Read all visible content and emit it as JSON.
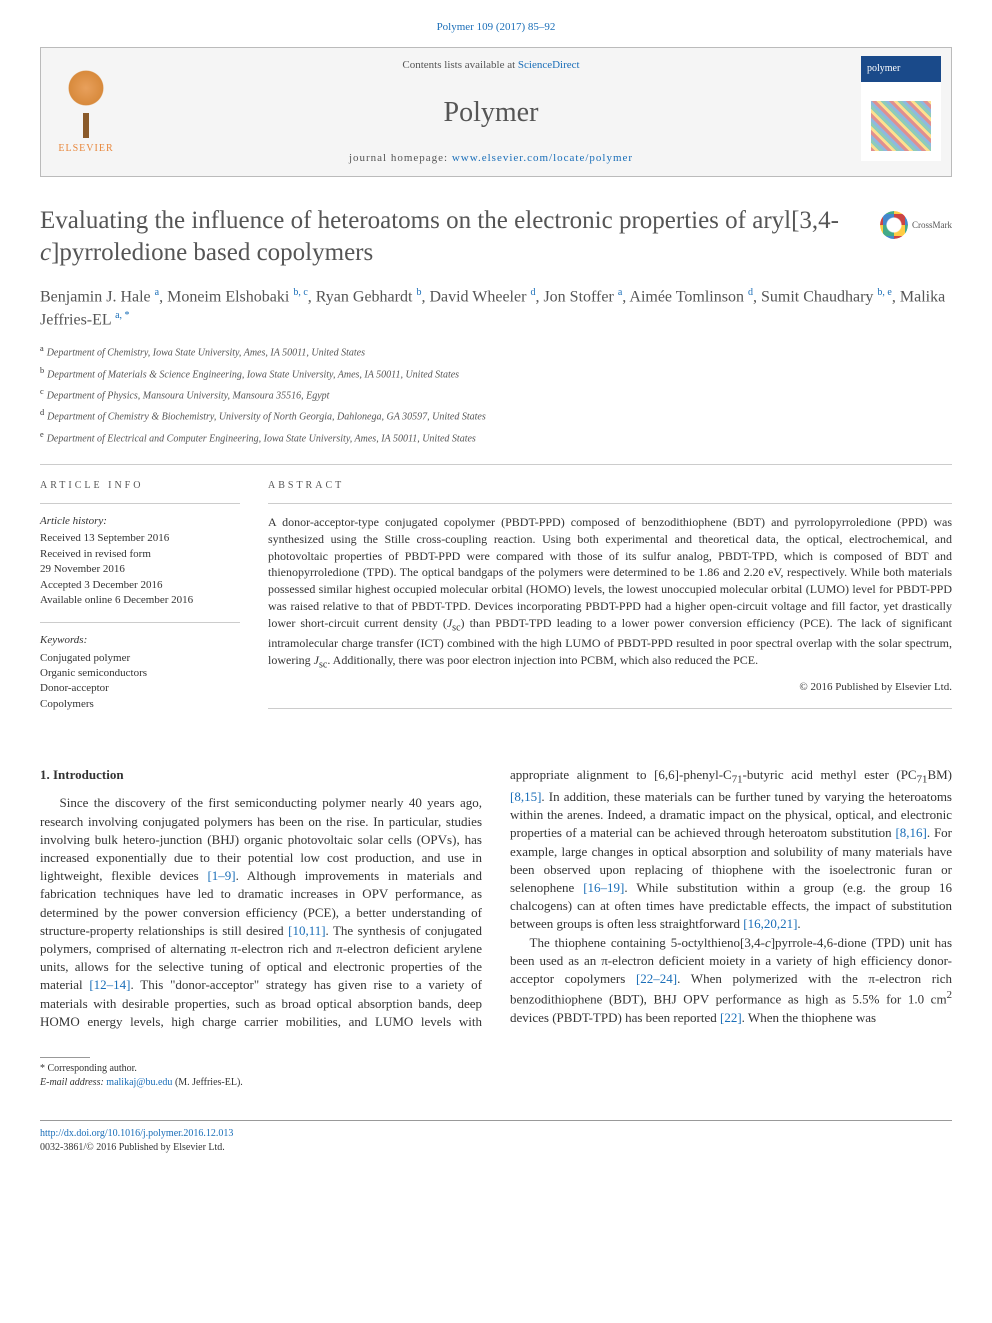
{
  "citation": "Polymer 109 (2017) 85–92",
  "header": {
    "contents_prefix": "Contents lists available at ",
    "contents_link": "ScienceDirect",
    "journal": "Polymer",
    "homepage_prefix": "journal homepage: ",
    "homepage_link": "www.elsevier.com/locate/polymer",
    "publisher": "ELSEVIER"
  },
  "title": "Evaluating the influence of heteroatoms on the electronic properties of aryl[3,4-c]pyrroledione based copolymers",
  "crossmark": "CrossMark",
  "authors_html": "Benjamin J. Hale <sup>a</sup>, Moneim Elshobaki <sup>b, c</sup>, Ryan Gebhardt <sup>b</sup>, David Wheeler <sup>d</sup>, Jon Stoffer <sup>a</sup>, Aimée Tomlinson <sup>d</sup>, Sumit Chaudhary <sup>b, e</sup>, Malika Jeffries-EL <sup>a, *</sup>",
  "affiliations": [
    {
      "sup": "a",
      "text": "Department of Chemistry, Iowa State University, Ames, IA 50011, United States"
    },
    {
      "sup": "b",
      "text": "Department of Materials & Science Engineering, Iowa State University, Ames, IA 50011, United States"
    },
    {
      "sup": "c",
      "text": "Department of Physics, Mansoura University, Mansoura 35516, Egypt"
    },
    {
      "sup": "d",
      "text": "Department of Chemistry & Biochemistry, University of North Georgia, Dahlonega, GA 30597, United States"
    },
    {
      "sup": "e",
      "text": "Department of Electrical and Computer Engineering, Iowa State University, Ames, IA 50011, United States"
    }
  ],
  "info": {
    "head": "ARTICLE INFO",
    "history_label": "Article history:",
    "history": [
      "Received 13 September 2016",
      "Received in revised form",
      "29 November 2016",
      "Accepted 3 December 2016",
      "Available online 6 December 2016"
    ],
    "keywords_label": "Keywords:",
    "keywords": [
      "Conjugated polymer",
      "Organic semiconductors",
      "Donor-acceptor",
      "Copolymers"
    ]
  },
  "abstract": {
    "head": "ABSTRACT",
    "text": "A donor-acceptor-type conjugated copolymer (PBDT-PPD) composed of benzodithiophene (BDT) and pyrrolopyrroledione (PPD) was synthesized using the Stille cross-coupling reaction. Using both experimental and theoretical data, the optical, electrochemical, and photovoltaic properties of PBDT-PPD were compared with those of its sulfur analog, PBDT-TPD, which is composed of BDT and thienopyrroledione (TPD). The optical bandgaps of the polymers were determined to be 1.86 and 2.20 eV, respectively. While both materials possessed similar highest occupied molecular orbital (HOMO) levels, the lowest unoccupied molecular orbital (LUMO) level for PBDT-PPD was raised relative to that of PBDT-TPD. Devices incorporating PBDT-PPD had a higher open-circuit voltage and fill factor, yet drastically lower short-circuit current density (Jsc) than PBDT-TPD leading to a lower power conversion efficiency (PCE). The lack of significant intramolecular charge transfer (ICT) combined with the high LUMO of PBDT-PPD resulted in poor spectral overlap with the solar spectrum, lowering Jsc. Additionally, there was poor electron injection into PCBM, which also reduced the PCE.",
    "copyright": "© 2016 Published by Elsevier Ltd."
  },
  "body": {
    "section_head": "1. Introduction",
    "col1_p1": "Since the discovery of the first semiconducting polymer nearly 40 years ago, research involving conjugated polymers has been on the rise. In particular, studies involving bulk hetero-junction (BHJ) organic photovoltaic solar cells (OPVs), has increased exponentially due to their potential low cost production, and use in lightweight, flexible devices [1–9]. Although improvements in materials and fabrication techniques have led to dramatic increases in OPV performance, as determined by the power conversion efficiency (PCE), a better understanding of structure-property relationships is still desired [10,11]. The synthesis of conjugated polymers, comprised of alternating π-electron rich and π-electron deficient arylene units, allows for the selective tuning of optical and electronic properties of the material [12–14]. This \"donor-acceptor\" strategy has given rise to a variety of materials with desirable properties, such as",
    "col2_p1": "broad optical absorption bands, deep HOMO energy levels, high charge carrier mobilities, and LUMO levels with appropriate alignment to [6,6]-phenyl-C71-butyric acid methyl ester (PC71BM) [8,15]. In addition, these materials can be further tuned by varying the heteroatoms within the arenes. Indeed, a dramatic impact on the physical, optical, and electronic properties of a material can be achieved through heteroatom substitution [8,16]. For example, large changes in optical absorption and solubility of many materials have been observed upon replacing of thiophene with the isoelectronic furan or selenophene [16–19]. While substitution within a group (e.g. the group 16 chalcogens) can at often times have predictable effects, the impact of substitution between groups is often less straightforward [16,20,21].",
    "col2_p2": "The thiophene containing 5-octylthieno[3,4-c]pyrrole-4,6-dione (TPD) unit has been used as an π-electron deficient moiety in a variety of high efficiency donor-acceptor copolymers [22–24]. When polymerized with the π-electron rich benzodithiophene (BDT), BHJ OPV performance as high as 5.5% for 1.0 cm² devices (PBDT-TPD) has been reported [22]. When the thiophene was"
  },
  "corr": {
    "label": "* Corresponding author.",
    "email_label": "E-mail address:",
    "email": "malikaj@bu.edu",
    "email_who": "(M. Jeffries-EL)."
  },
  "footer": {
    "doi": "http://dx.doi.org/10.1016/j.polymer.2016.12.013",
    "issn_line": "0032-3861/© 2016 Published by Elsevier Ltd."
  },
  "refs": {
    "r1_9": "[1–9]",
    "r10_11": "[10,11]",
    "r12_14": "[12–14]",
    "r8_15": "[8,15]",
    "r8_16": "[8,16]",
    "r16_19": "[16–19]",
    "r16_20_21": "[16,20,21]",
    "r22_24": "[22–24]",
    "r22": "[22]"
  }
}
